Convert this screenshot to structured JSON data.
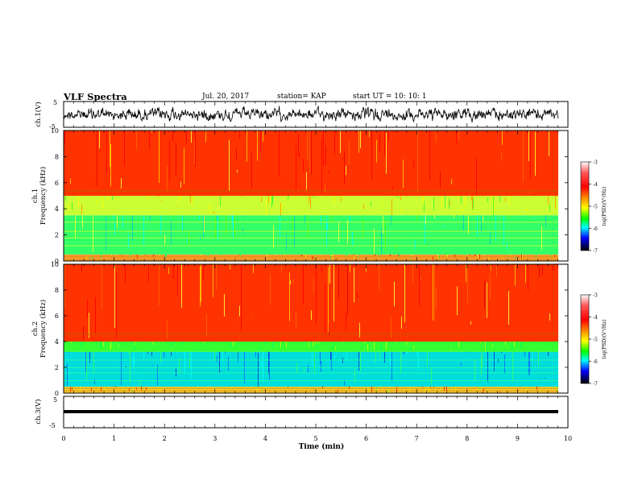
{
  "header": {
    "title": "VLF Spectra",
    "date": "Jul. 20, 2017",
    "station": "station= KAP",
    "start": "start  UT  =   10: 10: 1"
  },
  "chart_data": [
    {
      "type": "line",
      "panel": "ch1-waveform",
      "ylabel": "ch.1(V)",
      "ylim": [
        -5,
        5
      ],
      "yticks": [
        "5",
        "-5"
      ],
      "xlim": [
        0,
        10
      ],
      "appearance": "dense black oscillating trace spanning roughly -3 to +3 V"
    },
    {
      "type": "heatmap",
      "panel": "ch1-spectrogram",
      "ylabel": "ch.1",
      "ylabel2": "Frequency (kHz)",
      "ylim": [
        0,
        10
      ],
      "yticks": [
        "0",
        "2",
        "4",
        "6",
        "8",
        "10"
      ],
      "xlim": [
        0,
        10
      ],
      "colorbar": {
        "label": "log(PSD)(V²/Hz)",
        "range": [
          -7,
          -3
        ],
        "ticks": [
          "-3",
          "-4",
          "-5",
          "-6",
          "-7"
        ]
      },
      "bands": [
        {
          "range_khz": [
            5.0,
            10.0
          ],
          "level": "high (~ -3.5)",
          "color": "red"
        },
        {
          "range_khz": [
            3.5,
            5.0
          ],
          "level": "mid (~ -4.5)",
          "color": "yellow/green"
        },
        {
          "range_khz": [
            0.5,
            3.5
          ],
          "level": "low (~ -5.5)",
          "color": "green/cyan"
        },
        {
          "range_khz": [
            0.0,
            0.5
          ],
          "level": "mixed",
          "color": "yellow/red"
        }
      ]
    },
    {
      "type": "heatmap",
      "panel": "ch2-spectrogram",
      "ylabel": "ch.2",
      "ylabel2": "Frequency (kHz)",
      "ylim": [
        0,
        10
      ],
      "yticks": [
        "0",
        "2",
        "4",
        "6",
        "8",
        "10"
      ],
      "xlim": [
        0,
        10
      ],
      "colorbar": {
        "label": "log(PSD)(V²/Hz)",
        "range": [
          -7,
          -3
        ],
        "ticks": [
          "-3",
          "-4",
          "-5",
          "-6",
          "-7"
        ]
      },
      "bands": [
        {
          "range_khz": [
            4.0,
            10.0
          ],
          "level": "high (~ -3.5)",
          "color": "red"
        },
        {
          "range_khz": [
            3.2,
            4.0
          ],
          "level": "mid (~ -4.8)",
          "color": "green"
        },
        {
          "range_khz": [
            0.5,
            3.2
          ],
          "level": "low (~ -6)",
          "color": "cyan/blue"
        },
        {
          "range_khz": [
            0.0,
            0.5
          ],
          "level": "mixed",
          "color": "yellow/red"
        }
      ]
    },
    {
      "type": "line",
      "panel": "ch3-waveform",
      "ylabel": "ch.3(V)",
      "ylim": [
        -5,
        5
      ],
      "yticks": [
        "5",
        "-5"
      ],
      "xlim": [
        0,
        10
      ],
      "xlabel": "Time (min)",
      "xticks": [
        "0",
        "1",
        "2",
        "3",
        "4",
        "5",
        "6",
        "7",
        "8",
        "9",
        "10"
      ],
      "values_v": [
        -1.2
      ]
    }
  ]
}
